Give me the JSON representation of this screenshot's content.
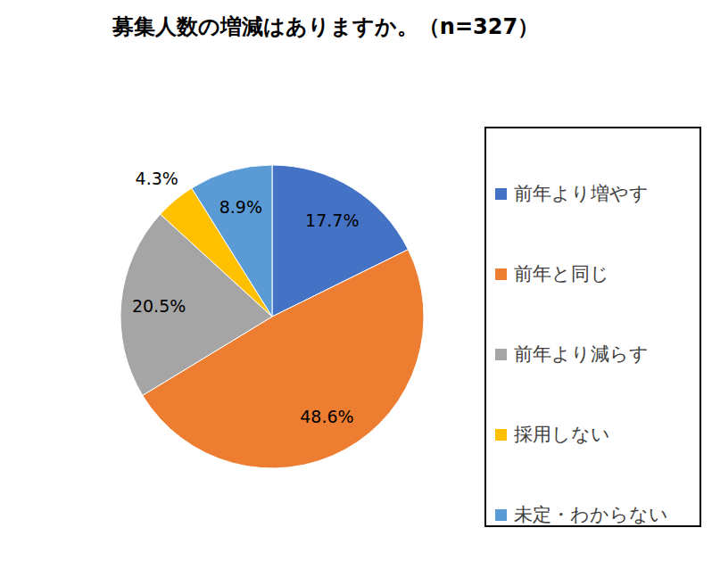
{
  "chart_data": {
    "type": "pie",
    "title": "募集人数の増減はありますか。（n=327）",
    "categories": [
      "前年より増やす",
      "前年と同じ",
      "前年より減らす",
      "採用しない",
      "未定・わからない"
    ],
    "values": [
      17.7,
      48.6,
      20.5,
      4.3,
      8.9
    ],
    "value_labels": [
      "17.7%",
      "48.6%",
      "20.5%",
      "4.3%",
      "8.9%"
    ],
    "colors": [
      "#4472c4",
      "#ed7d31",
      "#a5a5a5",
      "#ffc000",
      "#5b9bd5"
    ],
    "legend": "right",
    "data_labels": true
  }
}
